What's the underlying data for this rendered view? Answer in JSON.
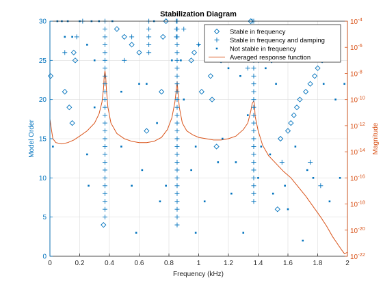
{
  "figure": {
    "title": "Stabilization Diagram",
    "colors": {
      "left_axis": "#0072BD",
      "right_axis": "#D95319",
      "grid": "#dcdcdc",
      "frame": "#262626"
    }
  },
  "chart_data": {
    "type": "scatter",
    "title": "Stabilization Diagram",
    "xlabel": "Frequency (kHz)",
    "ylabel_left": "Model Order",
    "ylabel_right": "Magnitude",
    "xlim": [
      0,
      2
    ],
    "ylim_left": [
      0,
      30
    ],
    "ylim_right_log10": [
      -22,
      -4
    ],
    "right_axis_scale": "log",
    "grid": true,
    "legend_position": "top-right",
    "x_ticks": [
      0,
      0.2,
      0.4,
      0.6,
      0.8,
      1,
      1.2,
      1.4,
      1.6,
      1.8,
      2
    ],
    "x_tick_labels": [
      "0",
      "0.2",
      "0.4",
      "0.6",
      "0.8",
      "1",
      "1.2",
      "1.4",
      "1.6",
      "1.8",
      "2"
    ],
    "y_ticks_left": [
      0,
      5,
      10,
      15,
      20,
      25,
      30
    ],
    "y_tick_labels_left": [
      "0",
      "5",
      "10",
      "15",
      "20",
      "25",
      "30"
    ],
    "y_ticks_right_exponents": [
      -22,
      -20,
      -18,
      -16,
      -14,
      -12,
      -10,
      -8,
      -6,
      -4
    ],
    "right_tick_base": "10",
    "legend": [
      {
        "label": "Stable in frequency",
        "marker": "diamond"
      },
      {
        "label": "Stable in frequency and damping",
        "marker": "plus"
      },
      {
        "label": "Not stable in frequency",
        "marker": "dot"
      },
      {
        "label": "Averaged response function",
        "marker": "line"
      }
    ],
    "plus_columns": [
      {
        "x": 0.37,
        "orders": [
          5,
          6,
          7,
          8,
          9,
          10,
          11,
          12,
          13,
          14,
          15,
          16,
          17,
          18,
          19,
          20,
          21,
          22,
          23,
          24,
          25,
          26,
          27,
          28,
          29,
          30
        ]
      },
      {
        "x": 0.855,
        "orders": [
          4,
          5,
          6,
          7,
          8,
          9,
          10,
          11,
          12,
          13,
          14,
          15,
          16,
          17,
          18,
          19,
          20,
          21,
          22,
          23,
          24,
          25,
          26,
          27,
          28,
          29,
          30
        ]
      },
      {
        "x": 1.37,
        "orders": [
          7,
          8,
          9,
          10,
          11,
          12,
          13,
          14,
          15,
          16,
          17,
          18,
          19,
          20,
          21,
          22,
          23,
          24,
          25,
          26,
          27,
          28,
          29,
          30
        ]
      },
      {
        "x": 0.85,
        "orders": [
          28,
          29,
          30
        ]
      },
      {
        "x": 0.665,
        "orders": [
          26,
          27,
          28,
          29,
          30
        ]
      },
      {
        "x": 1.36,
        "orders": [
          26,
          27,
          28,
          29,
          30
        ]
      }
    ],
    "stable_in_frequency_points": [
      [
        0.005,
        23
      ],
      [
        0.36,
        4
      ],
      [
        0.13,
        19
      ],
      [
        0.1,
        21
      ],
      [
        0.15,
        17
      ],
      [
        0.17,
        25
      ],
      [
        0.16,
        26
      ],
      [
        0.45,
        29
      ],
      [
        0.5,
        28
      ],
      [
        0.55,
        27
      ],
      [
        0.6,
        26
      ],
      [
        0.65,
        16
      ],
      [
        0.75,
        21
      ],
      [
        0.76,
        28
      ],
      [
        0.78,
        30
      ],
      [
        0.95,
        25
      ],
      [
        0.97,
        26
      ],
      [
        1.02,
        21
      ],
      [
        1.08,
        23
      ],
      [
        1.09,
        20
      ],
      [
        1.12,
        14
      ],
      [
        1.15,
        25
      ],
      [
        1.18,
        27
      ],
      [
        1.21,
        28
      ],
      [
        1.25,
        28
      ],
      [
        1.28,
        29
      ],
      [
        1.35,
        30
      ],
      [
        1.42,
        29
      ],
      [
        1.45,
        27
      ],
      [
        1.47,
        26
      ],
      [
        1.49,
        25
      ],
      [
        1.53,
        6
      ],
      [
        1.55,
        15
      ],
      [
        1.6,
        16
      ],
      [
        1.62,
        17
      ],
      [
        1.64,
        18
      ],
      [
        1.66,
        19
      ],
      [
        1.68,
        20
      ],
      [
        1.72,
        21
      ],
      [
        1.75,
        22
      ],
      [
        1.78,
        23
      ],
      [
        1.8,
        24
      ],
      [
        1.83,
        25
      ],
      [
        1.86,
        26
      ],
      [
        1.89,
        27
      ]
    ],
    "stable_in_frequency_and_damping_points": [
      [
        0.1,
        26
      ],
      [
        0.18,
        28
      ],
      [
        0.22,
        30
      ],
      [
        0.5,
        25
      ],
      [
        0.55,
        28
      ],
      [
        0.9,
        29
      ],
      [
        1.0,
        27
      ],
      [
        1.13,
        27
      ],
      [
        1.33,
        24
      ],
      [
        1.4,
        25
      ],
      [
        1.56,
        12
      ],
      [
        1.75,
        12
      ],
      [
        1.82,
        9
      ],
      [
        1.93,
        28
      ]
    ],
    "not_stable_points": [
      [
        0.02,
        14
      ],
      [
        0.05,
        30
      ],
      [
        0.08,
        30
      ],
      [
        0.1,
        28
      ],
      [
        0.12,
        30
      ],
      [
        0.15,
        28
      ],
      [
        0.2,
        30
      ],
      [
        0.25,
        13
      ],
      [
        0.25,
        27
      ],
      [
        0.26,
        9
      ],
      [
        0.28,
        30
      ],
      [
        0.3,
        19
      ],
      [
        0.3,
        25
      ],
      [
        0.33,
        30
      ],
      [
        0.42,
        30
      ],
      [
        0.48,
        21
      ],
      [
        0.48,
        14
      ],
      [
        0.55,
        9
      ],
      [
        0.58,
        3
      ],
      [
        0.6,
        22
      ],
      [
        0.62,
        11
      ],
      [
        0.65,
        22
      ],
      [
        0.7,
        30
      ],
      [
        0.72,
        17
      ],
      [
        0.74,
        7
      ],
      [
        0.78,
        9
      ],
      [
        0.82,
        25
      ],
      [
        0.88,
        25
      ],
      [
        0.9,
        20
      ],
      [
        0.95,
        11
      ],
      [
        0.98,
        14
      ],
      [
        1.0,
        27
      ],
      [
        1.04,
        7
      ],
      [
        1.1,
        25
      ],
      [
        1.13,
        12
      ],
      [
        1.16,
        15
      ],
      [
        1.2,
        24
      ],
      [
        1.22,
        8
      ],
      [
        1.25,
        12
      ],
      [
        1.28,
        23
      ],
      [
        1.3,
        3
      ],
      [
        1.33,
        18
      ],
      [
        1.38,
        26
      ],
      [
        1.4,
        10
      ],
      [
        1.42,
        14
      ],
      [
        1.45,
        24
      ],
      [
        1.48,
        13
      ],
      [
        1.5,
        8
      ],
      [
        1.52,
        22
      ],
      [
        1.58,
        9
      ],
      [
        1.6,
        6
      ],
      [
        1.65,
        14
      ],
      [
        1.7,
        26
      ],
      [
        1.73,
        11
      ],
      [
        1.77,
        10
      ],
      [
        1.8,
        28
      ],
      [
        1.84,
        22
      ],
      [
        1.88,
        7
      ],
      [
        1.92,
        20
      ],
      [
        1.95,
        10
      ],
      [
        1.98,
        22
      ],
      [
        1.7,
        2
      ],
      [
        0.98,
        3
      ]
    ],
    "averaged_response_function": {
      "x": [
        0,
        0.01,
        0.02,
        0.04,
        0.08,
        0.12,
        0.16,
        0.2,
        0.25,
        0.3,
        0.33,
        0.35,
        0.36,
        0.365,
        0.37,
        0.375,
        0.38,
        0.39,
        0.41,
        0.45,
        0.5,
        0.55,
        0.6,
        0.65,
        0.7,
        0.75,
        0.79,
        0.82,
        0.84,
        0.85,
        0.855,
        0.86,
        0.87,
        0.89,
        0.92,
        0.96,
        1.0,
        1.05,
        1.1,
        1.15,
        1.2,
        1.25,
        1.3,
        1.33,
        1.35,
        1.36,
        1.37,
        1.375,
        1.38,
        1.4,
        1.43,
        1.47,
        1.52,
        1.57,
        1.62,
        1.67,
        1.72,
        1.77,
        1.82,
        1.86,
        1.9,
        1.93,
        1.96,
        1.98,
        2.0
      ],
      "log10_magnitude": [
        -11.5,
        -12.3,
        -13.0,
        -13.3,
        -13.4,
        -13.3,
        -13.1,
        -12.8,
        -12.4,
        -11.8,
        -11.1,
        -10.2,
        -9.2,
        -8.2,
        -7.8,
        -8.3,
        -9.3,
        -10.6,
        -11.8,
        -12.6,
        -13.0,
        -13.2,
        -13.3,
        -13.3,
        -13.2,
        -12.9,
        -12.3,
        -11.4,
        -10.2,
        -9.2,
        -8.6,
        -9.3,
        -10.6,
        -11.8,
        -12.4,
        -12.7,
        -12.9,
        -13.0,
        -13.1,
        -13.1,
        -13.0,
        -12.8,
        -12.3,
        -11.8,
        -10.9,
        -10.3,
        -10.1,
        -10.4,
        -11.3,
        -12.4,
        -13.5,
        -14.3,
        -14.9,
        -15.5,
        -16.0,
        -16.7,
        -17.4,
        -18.2,
        -19.0,
        -19.7,
        -20.5,
        -21.0,
        -21.5,
        -21.8,
        -21.7
      ]
    }
  }
}
